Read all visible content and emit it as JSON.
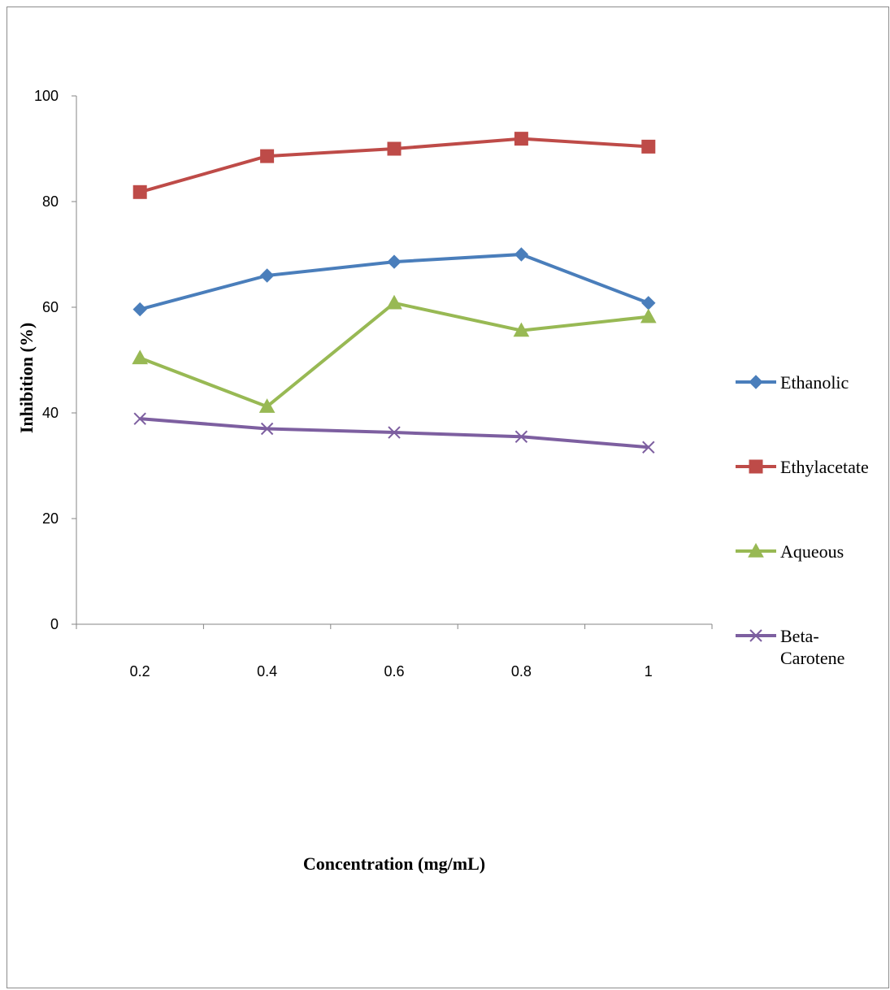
{
  "chart_data": {
    "type": "line",
    "xlabel": "Concentration (mg/mL)",
    "ylabel": "Inhibition (%)",
    "categories": [
      "0.2",
      "0.4",
      "0.6",
      "0.8",
      "1"
    ],
    "ylim": [
      0,
      100
    ],
    "yticks": [
      0,
      20,
      40,
      60,
      80,
      100
    ],
    "grid": false,
    "legend_position": "right",
    "series": [
      {
        "name": "Ethanolic",
        "color": "#4a7ebb",
        "marker": "diamond",
        "values": [
          59.6,
          66.0,
          68.6,
          70.0,
          60.8
        ]
      },
      {
        "name": "Ethylacetate",
        "color": "#be4b48",
        "marker": "square",
        "values": [
          81.8,
          88.6,
          90.0,
          91.9,
          90.4
        ]
      },
      {
        "name": "Aqueous",
        "color": "#98b954",
        "marker": "triangle",
        "values": [
          50.4,
          41.2,
          60.8,
          55.6,
          58.2
        ]
      },
      {
        "name": "Beta-Carotene",
        "name_lines": [
          "Beta-",
          "Carotene"
        ],
        "color": "#7d5fa0",
        "marker": "x",
        "values": [
          38.9,
          37.0,
          36.3,
          35.5,
          33.5
        ]
      }
    ]
  }
}
